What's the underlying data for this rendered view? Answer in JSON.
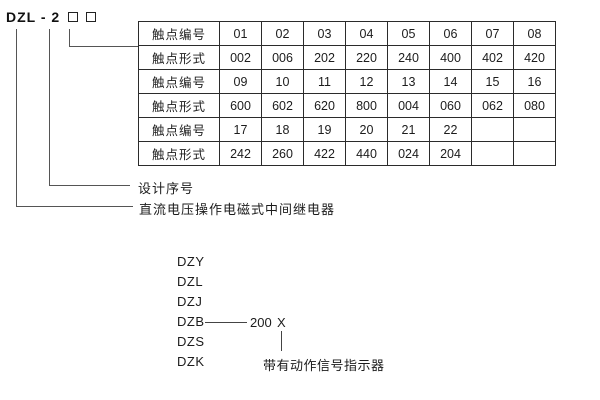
{
  "model": {
    "prefix": "DZL - 2",
    "placeholder_box_count": 2
  },
  "table": {
    "rows": [
      {
        "label": "触点编号",
        "values": [
          "01",
          "02",
          "03",
          "04",
          "05",
          "06",
          "07",
          "08"
        ]
      },
      {
        "label": "触点形式",
        "values": [
          "002",
          "006",
          "202",
          "220",
          "240",
          "400",
          "402",
          "420"
        ]
      },
      {
        "label": "触点编号",
        "values": [
          "09",
          "10",
          "11",
          "12",
          "13",
          "14",
          "15",
          "16"
        ]
      },
      {
        "label": "触点形式",
        "values": [
          "600",
          "602",
          "620",
          "800",
          "004",
          "060",
          "062",
          "080"
        ]
      },
      {
        "label": "触点编号",
        "values": [
          "17",
          "18",
          "19",
          "20",
          "21",
          "22",
          "",
          ""
        ]
      },
      {
        "label": "触点形式",
        "values": [
          "242",
          "260",
          "422",
          "440",
          "024",
          "204",
          "",
          ""
        ]
      }
    ]
  },
  "callouts": {
    "design_serial": "设计序号",
    "relay_description": "直流电压操作电磁式中间继电器"
  },
  "series": {
    "items": [
      "DZY",
      "DZL",
      "DZJ",
      "DZB",
      "DZS",
      "DZK"
    ],
    "dzb_number": "200",
    "dzb_variable": "X",
    "indicator_note": "带有动作信号指示器"
  },
  "colors": {
    "text": "#1a1a1a",
    "border": "#2b2b2b",
    "line": "#555555",
    "background": "#ffffff"
  }
}
